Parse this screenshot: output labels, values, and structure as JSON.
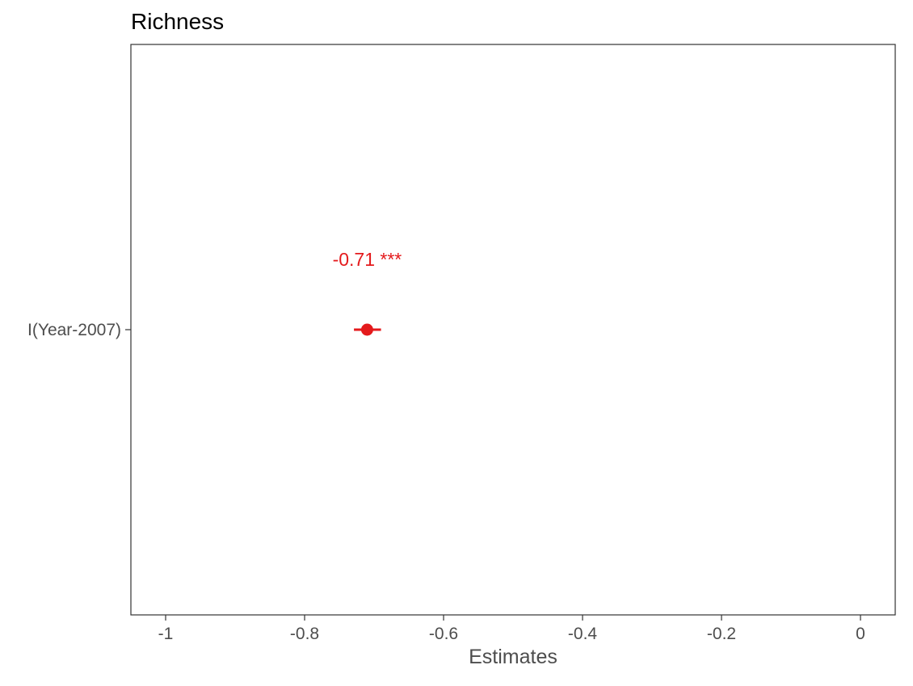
{
  "chart_data": {
    "type": "scatter",
    "title": "Richness",
    "xlabel": "Estimates",
    "ylabel": "",
    "xlim": [
      -1.05,
      0.05
    ],
    "x_ticks": [
      -1,
      -0.8,
      -0.6,
      -0.4,
      -0.2,
      0
    ],
    "x_tick_labels": [
      "-1",
      "-0.8",
      "-0.6",
      "-0.4",
      "-0.2",
      "0"
    ],
    "categories": [
      "I(Year-2007)"
    ],
    "points": [
      {
        "term": "I(Year-2007)",
        "estimate": -0.71,
        "conf_low": -0.722,
        "conf_high": -0.697,
        "label": "-0.71 ***"
      }
    ],
    "point_color": "#e41a1c",
    "grid": false,
    "legend": "none"
  }
}
